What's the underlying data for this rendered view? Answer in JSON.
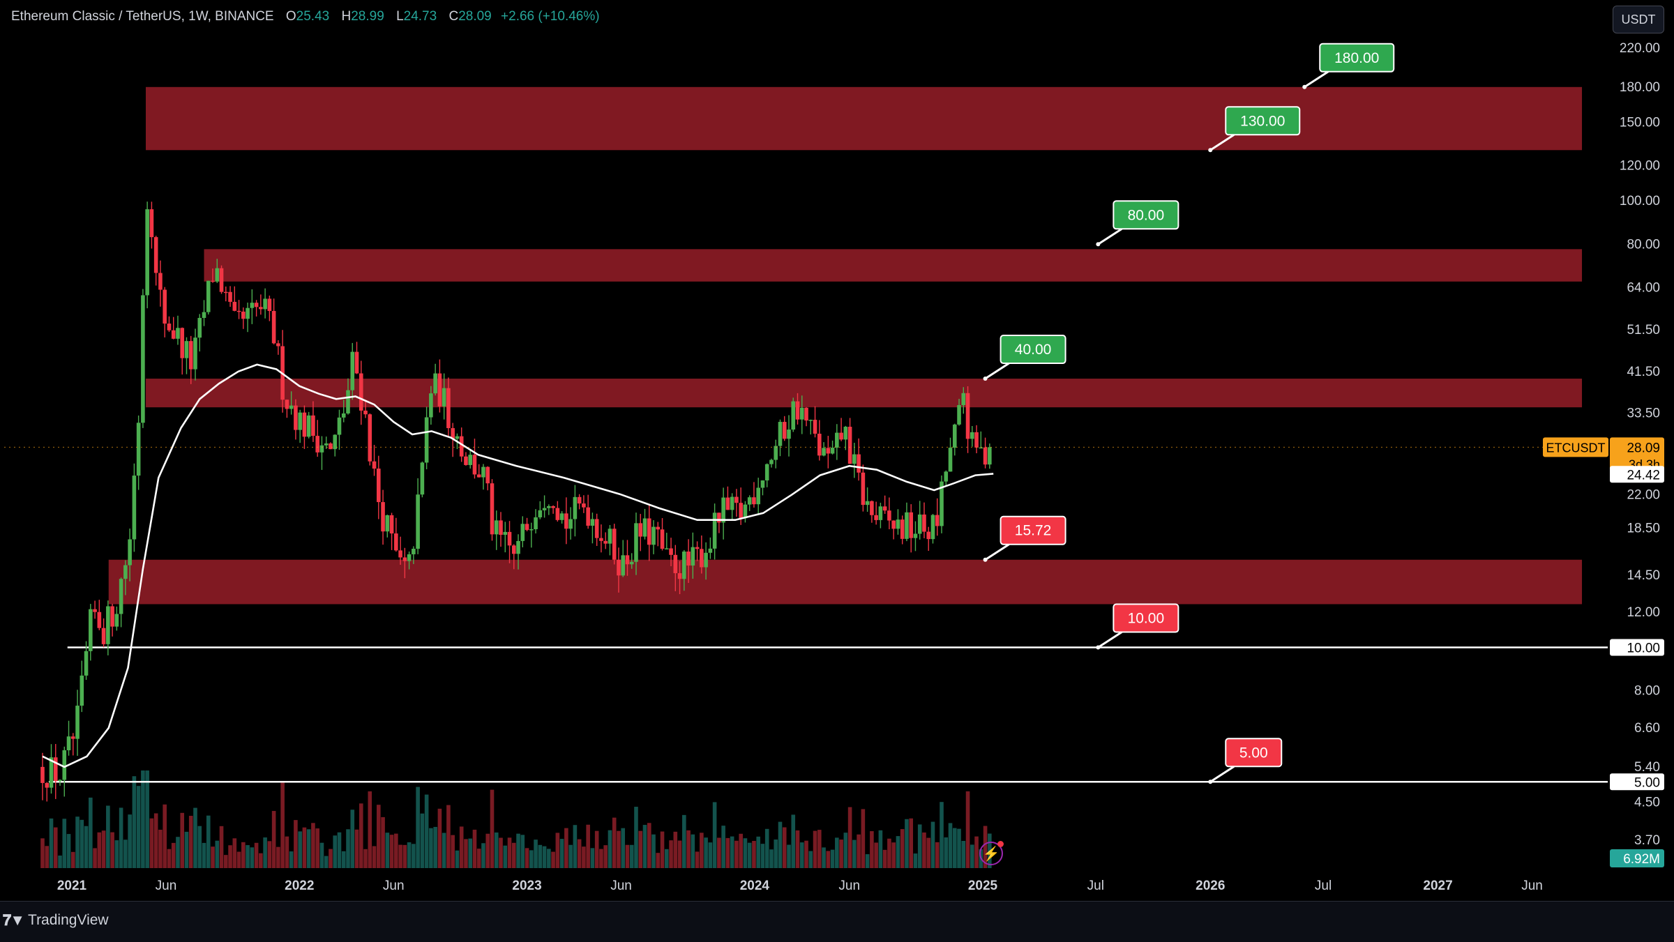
{
  "header": {
    "symbol_title": "Ethereum Classic / TetherUS, 1W, BINANCE",
    "open_label": "O",
    "open": "25.43",
    "high_label": "H",
    "high": "28.99",
    "low_label": "L",
    "low": "24.73",
    "close_label": "C",
    "close": "28.09",
    "change": "+2.66 (+10.46%)"
  },
  "toolbar": {
    "currency": "USDT"
  },
  "footer": {
    "brand": "TradingView",
    "logo_icon": "tradingview-logo-icon"
  },
  "colors": {
    "background": "#000000",
    "bull": "#26a69a",
    "bull_candle": "#4caf50",
    "bear": "#f23645",
    "zone": "#801922",
    "target_label": "#2fa84f",
    "stop_label": "#f23645",
    "ma": "#ffffff",
    "price_label": "#f7a21b"
  },
  "chart_data": {
    "type": "candlestick",
    "scale": "log",
    "ylim": [
      3.4,
      235
    ],
    "y_ticks": [
      "220.00",
      "180.00",
      "150.00",
      "120.00",
      "100.00",
      "80.00",
      "64.00",
      "51.50",
      "41.50",
      "33.50",
      "22.00",
      "18.50",
      "14.50",
      "12.00",
      "8.00",
      "6.60",
      "5.40",
      "4.50",
      "3.70"
    ],
    "x_ticks": [
      {
        "label": "2021",
        "date": "2021-01-01"
      },
      {
        "label": "Jun",
        "date": "2021-06-01"
      },
      {
        "label": "2022",
        "date": "2022-01-01"
      },
      {
        "label": "Jun",
        "date": "2022-06-01"
      },
      {
        "label": "2023",
        "date": "2023-01-01"
      },
      {
        "label": "Jun",
        "date": "2023-06-01"
      },
      {
        "label": "2024",
        "date": "2024-01-01"
      },
      {
        "label": "Jun",
        "date": "2024-06-01"
      },
      {
        "label": "2025",
        "date": "2025-01-01"
      },
      {
        "label": "Jul",
        "date": "2025-07-01"
      },
      {
        "label": "2026",
        "date": "2026-01-01"
      },
      {
        "label": "Jul",
        "date": "2026-07-01"
      },
      {
        "label": "2027",
        "date": "2027-01-01"
      },
      {
        "label": "Jun",
        "date": "2027-06-01"
      }
    ],
    "x_range": [
      "2020-11-15",
      "2027-09-01"
    ],
    "series_anchors": [
      [
        "2020-11-15",
        5.4
      ],
      [
        "2020-12-20",
        5.2
      ],
      [
        "2021-01-15",
        6.5
      ],
      [
        "2021-02-10",
        12
      ],
      [
        "2021-03-01",
        11
      ],
      [
        "2021-03-20",
        12.5
      ],
      [
        "2021-04-10",
        17
      ],
      [
        "2021-04-25",
        33
      ],
      [
        "2021-05-05",
        85
      ],
      [
        "2021-05-12",
        118
      ],
      [
        "2021-05-20",
        70
      ],
      [
        "2021-06-05",
        55
      ],
      [
        "2021-06-25",
        50
      ],
      [
        "2021-07-20",
        43
      ],
      [
        "2021-08-10",
        58
      ],
      [
        "2021-08-25",
        72
      ],
      [
        "2021-09-05",
        65
      ],
      [
        "2021-09-25",
        52
      ],
      [
        "2021-10-20",
        55
      ],
      [
        "2021-11-10",
        58
      ],
      [
        "2021-11-28",
        50
      ],
      [
        "2021-12-15",
        37
      ],
      [
        "2022-01-10",
        32
      ],
      [
        "2022-02-05",
        30
      ],
      [
        "2022-02-28",
        27
      ],
      [
        "2022-03-25",
        36
      ],
      [
        "2022-04-05",
        45
      ],
      [
        "2022-04-25",
        32
      ],
      [
        "2022-05-12",
        22
      ],
      [
        "2022-06-15",
        15.5
      ],
      [
        "2022-07-01",
        14.5
      ],
      [
        "2022-07-20",
        22
      ],
      [
        "2022-08-05",
        38
      ],
      [
        "2022-08-20",
        38
      ],
      [
        "2022-09-05",
        33
      ],
      [
        "2022-10-01",
        27
      ],
      [
        "2022-11-01",
        24
      ],
      [
        "2022-11-15",
        18
      ],
      [
        "2022-12-20",
        16
      ],
      [
        "2023-01-20",
        21
      ],
      [
        "2023-02-15",
        23
      ],
      [
        "2023-03-10",
        19
      ],
      [
        "2023-04-10",
        21
      ],
      [
        "2023-05-10",
        18
      ],
      [
        "2023-06-12",
        15.3
      ],
      [
        "2023-07-05",
        18
      ],
      [
        "2023-08-01",
        18
      ],
      [
        "2023-08-20",
        15.5
      ],
      [
        "2023-09-25",
        15.2
      ],
      [
        "2023-10-25",
        17
      ],
      [
        "2023-11-15",
        20
      ],
      [
        "2023-12-20",
        20
      ],
      [
        "2024-01-15",
        24
      ],
      [
        "2024-02-10",
        28
      ],
      [
        "2024-03-05",
        33
      ],
      [
        "2024-03-15",
        35
      ],
      [
        "2024-04-05",
        31
      ],
      [
        "2024-04-25",
        27
      ],
      [
        "2024-05-10",
        26
      ],
      [
        "2024-05-30",
        31
      ],
      [
        "2024-06-20",
        24
      ],
      [
        "2024-07-10",
        20
      ],
      [
        "2024-08-05",
        19
      ],
      [
        "2024-09-01",
        18.5
      ],
      [
        "2024-10-01",
        18.5
      ],
      [
        "2024-10-25",
        18.5
      ],
      [
        "2024-11-12",
        26
      ],
      [
        "2024-11-28",
        31
      ],
      [
        "2024-12-08",
        37
      ],
      [
        "2024-12-20",
        28
      ],
      [
        "2025-01-10",
        27
      ],
      [
        "2025-01-18",
        28.09
      ]
    ],
    "moving_average": [
      [
        "2020-11-15",
        5.7
      ],
      [
        "2020-12-20",
        5.4
      ],
      [
        "2021-01-25",
        5.7
      ],
      [
        "2021-03-01",
        6.6
      ],
      [
        "2021-04-01",
        9
      ],
      [
        "2021-04-25",
        15
      ],
      [
        "2021-05-20",
        24
      ],
      [
        "2021-06-25",
        31
      ],
      [
        "2021-07-25",
        36
      ],
      [
        "2021-08-25",
        39
      ],
      [
        "2021-09-25",
        41.5
      ],
      [
        "2021-10-25",
        43
      ],
      [
        "2021-11-25",
        42
      ],
      [
        "2022-01-01",
        38.5
      ],
      [
        "2022-02-01",
        37
      ],
      [
        "2022-03-01",
        36
      ],
      [
        "2022-04-01",
        36.5
      ],
      [
        "2022-05-01",
        35
      ],
      [
        "2022-06-01",
        32
      ],
      [
        "2022-07-01",
        30
      ],
      [
        "2022-08-01",
        30.5
      ],
      [
        "2022-09-01",
        29.5
      ],
      [
        "2022-10-15",
        27
      ],
      [
        "2022-12-15",
        25.5
      ],
      [
        "2023-03-01",
        24
      ],
      [
        "2023-06-01",
        22
      ],
      [
        "2023-08-01",
        20.5
      ],
      [
        "2023-10-01",
        19.3
      ],
      [
        "2023-12-01",
        19.3
      ],
      [
        "2024-01-15",
        20
      ],
      [
        "2024-03-01",
        22
      ],
      [
        "2024-04-15",
        24.3
      ],
      [
        "2024-06-01",
        25.5
      ],
      [
        "2024-07-15",
        25
      ],
      [
        "2024-09-01",
        23.5
      ],
      [
        "2024-10-15",
        22.5
      ],
      [
        "2024-11-15",
        23.3
      ],
      [
        "2024-12-20",
        24.3
      ],
      [
        "2025-01-18",
        24.5
      ]
    ],
    "zones": [
      {
        "low": 130,
        "high": 180,
        "end": "2027-08-20"
      },
      {
        "low": 66,
        "high": 78,
        "start": "2021-08-01",
        "end": "2027-08-20"
      },
      {
        "low": 34.5,
        "high": 40,
        "end": "2027-08-20"
      },
      {
        "low": 12.5,
        "high": 15.72,
        "start": "2021-03-01",
        "end": "2027-08-20"
      }
    ],
    "horizontal_lines": [
      {
        "value": 10,
        "start": "2020-12-25",
        "label": "10.00"
      },
      {
        "value": 5,
        "start": "2020-11-25",
        "label": "5.00"
      }
    ],
    "targets": [
      {
        "value": 180,
        "label": "180.00",
        "kind": "target",
        "date": "2026-06-01",
        "offset": 0.08
      },
      {
        "value": 130,
        "label": "130.00",
        "kind": "target",
        "date": "2026-01-01",
        "offset": 0.08
      },
      {
        "value": 80,
        "label": "80.00",
        "kind": "target",
        "date": "2025-07-05",
        "offset": 0.08
      },
      {
        "value": 40,
        "label": "40.00",
        "kind": "target",
        "date": "2025-01-05",
        "offset": 0.08
      },
      {
        "value": 15.72,
        "label": "15.72",
        "kind": "stop",
        "date": "2025-01-05",
        "offset": 0.08
      },
      {
        "value": 10,
        "label": "10.00",
        "kind": "stop",
        "date": "2025-07-05",
        "offset": 0.08
      },
      {
        "value": 5,
        "label": "5.00",
        "kind": "stop",
        "date": "2026-01-01",
        "offset": 0.08
      }
    ],
    "price_label": {
      "symbol": "ETCUSDT",
      "price": "28.09",
      "countdown": "3d 3h",
      "value": 28.09
    },
    "ma_label": {
      "value": 24.42,
      "text": "24.42"
    },
    "volume_label": "6.92M"
  }
}
